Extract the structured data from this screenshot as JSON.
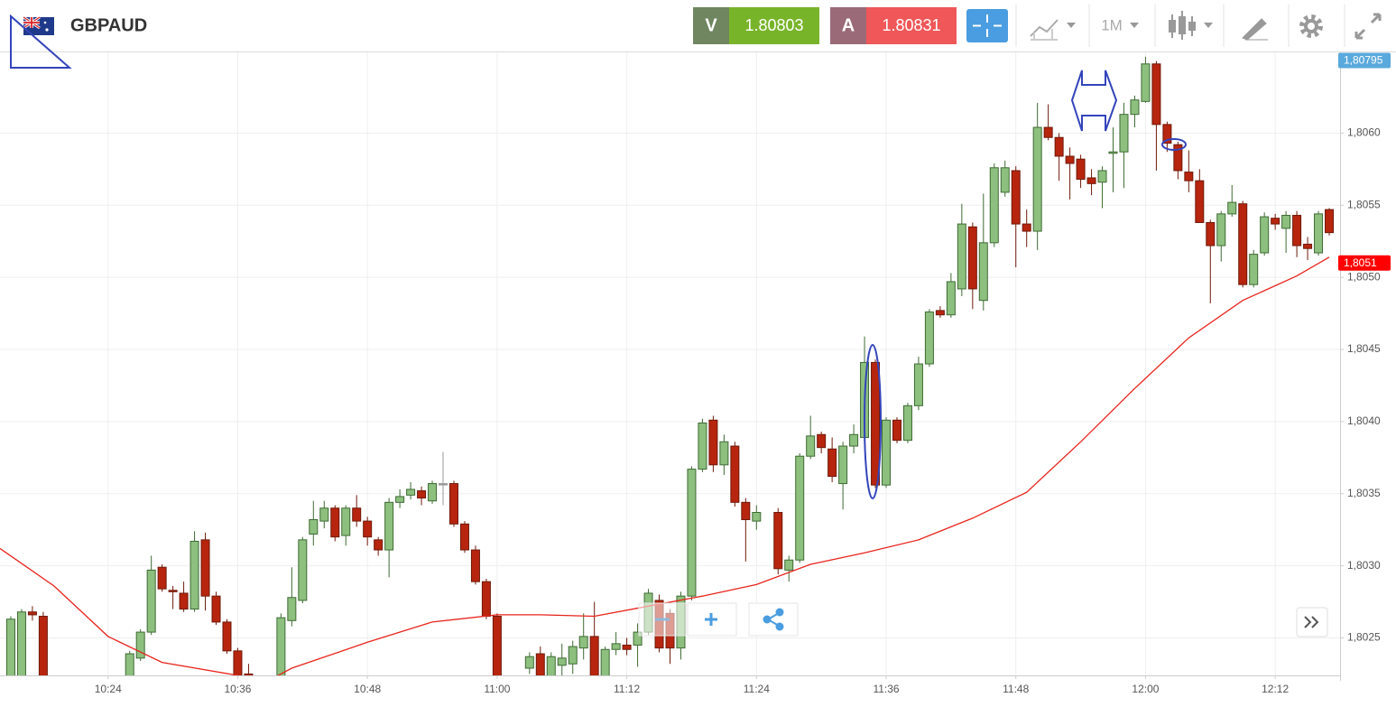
{
  "header": {
    "symbol": "GBPAUD",
    "sell": {
      "label": "V",
      "price": "1.80803"
    },
    "buy": {
      "label": "A",
      "price": "1.80831"
    },
    "timeframe": "1M"
  },
  "chart_data": {
    "type": "candlestick",
    "x": [
      "10:15",
      "10:16",
      "10:17",
      "10:18",
      "10:26",
      "10:27",
      "10:28",
      "10:29",
      "10:30",
      "10:31",
      "10:32",
      "10:33",
      "10:34",
      "10:35",
      "10:36",
      "10:37",
      "10:40",
      "10:41",
      "10:42",
      "10:43",
      "10:44",
      "10:45",
      "10:46",
      "10:47",
      "10:48",
      "10:49",
      "10:50",
      "10:51",
      "10:52",
      "10:53",
      "10:54",
      "10:55",
      "10:56",
      "10:57",
      "10:58",
      "10:59",
      "11:00",
      "11:03",
      "11:04",
      "11:05",
      "11:06",
      "11:07",
      "11:08",
      "11:09",
      "11:10",
      "11:11",
      "11:12",
      "11:13",
      "11:14",
      "11:15",
      "11:16",
      "11:17",
      "11:18",
      "11:19",
      "11:20",
      "11:21",
      "11:22",
      "11:23",
      "11:24",
      "11:26",
      "11:27",
      "11:28",
      "11:29",
      "11:30",
      "11:31",
      "11:32",
      "11:33",
      "11:34",
      "11:35",
      "11:36",
      "11:37",
      "11:38",
      "11:39",
      "11:40",
      "11:41",
      "11:42",
      "11:43",
      "11:44",
      "11:45",
      "11:46",
      "11:47",
      "11:48",
      "11:49",
      "11:50",
      "11:51",
      "11:52",
      "11:53",
      "11:54",
      "11:55",
      "11:56",
      "11:57",
      "11:58",
      "11:59",
      "12:00",
      "12:01",
      "12:02",
      "12:03",
      "12:04",
      "12:05",
      "12:06",
      "12:07",
      "12:08",
      "12:09",
      "12:10",
      "12:11",
      "12:12",
      "12:13",
      "12:14",
      "12:15",
      "12:16",
      "12:17"
    ],
    "open": [
      1.80215,
      1.80215,
      1.80268,
      1.80265,
      1.80215,
      1.80236,
      1.80254,
      1.80299,
      1.80283,
      1.80281,
      1.8027,
      1.80318,
      1.80279,
      1.80261,
      1.80241,
      1.80225,
      1.80215,
      1.80262,
      1.80276,
      1.80322,
      1.80331,
      1.8034,
      1.80321,
      1.8034,
      1.80331,
      1.80318,
      1.80311,
      1.80344,
      1.80349,
      1.80352,
      1.80345,
      1.80357,
      1.80357,
      1.80329,
      1.80311,
      1.80289,
      1.80265,
      1.80229,
      1.80239,
      1.80218,
      1.80231,
      1.80232,
      1.80243,
      1.80251,
      1.80215,
      1.80242,
      1.80245,
      1.80245,
      1.80254,
      1.80276,
      1.80267,
      1.80243,
      1.80279,
      1.80367,
      1.80401,
      1.8037,
      1.80383,
      1.80344,
      1.80331,
      1.80337,
      1.80297,
      1.80304,
      1.80376,
      1.80391,
      1.80381,
      1.80357,
      1.80383,
      1.80389,
      1.80441,
      1.80356,
      1.80401,
      1.80387,
      1.80411,
      1.8044,
      1.80477,
      1.80474,
      1.80492,
      1.80535,
      1.80484,
      1.80524,
      1.80559,
      1.80574,
      1.80537,
      1.80532,
      1.80604,
      1.80597,
      1.80584,
      1.80582,
      1.80569,
      1.80566,
      1.80586,
      1.80587,
      1.80613,
      1.80622,
      1.80648,
      1.80606,
      1.80592,
      1.80573,
      1.80567,
      1.80538,
      1.80522,
      1.80544,
      1.80551,
      1.80495,
      1.80517,
      1.80541,
      1.80534,
      1.80543,
      1.80523,
      1.80517,
      1.80547
    ],
    "high": [
      1.80265,
      1.8027,
      1.80272,
      1.80268,
      1.80241,
      1.80256,
      1.80307,
      1.80301,
      1.80286,
      1.80289,
      1.80324,
      1.80323,
      1.80282,
      1.80263,
      1.80243,
      1.80232,
      1.80267,
      1.80299,
      1.8032,
      1.80345,
      1.80345,
      1.80342,
      1.80342,
      1.80349,
      1.80334,
      1.8032,
      1.80347,
      1.80353,
      1.80358,
      1.80355,
      1.80359,
      1.80379,
      1.80359,
      1.80331,
      1.80314,
      1.80291,
      1.80267,
      1.8024,
      1.80244,
      1.8024,
      1.80246,
      1.80248,
      1.80267,
      1.80275,
      1.80244,
      1.80254,
      1.8025,
      1.8026,
      1.80284,
      1.8028,
      1.8027,
      1.80282,
      1.80369,
      1.80402,
      1.80404,
      1.80391,
      1.80386,
      1.80347,
      1.80342,
      1.8034,
      1.80307,
      1.80378,
      1.80404,
      1.80393,
      1.80389,
      1.80386,
      1.80398,
      1.80459,
      1.80443,
      1.80403,
      1.80403,
      1.80413,
      1.80445,
      1.80478,
      1.8048,
      1.80503,
      1.80551,
      1.80538,
      1.80558,
      1.80579,
      1.80581,
      1.80577,
      1.80547,
      1.80621,
      1.8062,
      1.806,
      1.8059,
      1.80585,
      1.80575,
      1.80577,
      1.80604,
      1.80621,
      1.80626,
      1.80653,
      1.8065,
      1.80608,
      1.80594,
      1.80588,
      1.80575,
      1.8054,
      1.80546,
      1.80564,
      1.80553,
      1.80519,
      1.80545,
      1.80544,
      1.80546,
      1.80546,
      1.80528,
      1.80546,
      1.80548
    ],
    "low": [
      1.8021,
      1.8021,
      1.80262,
      1.8021,
      1.8021,
      1.80234,
      1.80252,
      1.80282,
      1.8027,
      1.80268,
      1.80268,
      1.80269,
      1.80259,
      1.80239,
      1.8021,
      1.80212,
      1.8021,
      1.80258,
      1.80274,
      1.80314,
      1.80326,
      1.80317,
      1.80314,
      1.80327,
      1.80314,
      1.80307,
      1.80292,
      1.8034,
      1.80346,
      1.80342,
      1.80343,
      1.80342,
      1.80327,
      1.80309,
      1.80287,
      1.80263,
      1.8021,
      1.80225,
      1.8021,
      1.8021,
      1.80218,
      1.80225,
      1.80235,
      1.8021,
      1.8021,
      1.80238,
      1.80238,
      1.8023,
      1.80252,
      1.8024,
      1.80232,
      1.80235,
      1.80276,
      1.80365,
      1.80365,
      1.80363,
      1.80341,
      1.80303,
      1.80325,
      1.80294,
      1.80289,
      1.80302,
      1.80374,
      1.80378,
      1.80358,
      1.80339,
      1.80378,
      1.80386,
      1.80354,
      1.80354,
      1.80385,
      1.80385,
      1.80408,
      1.80438,
      1.80472,
      1.80472,
      1.80487,
      1.80478,
      1.80477,
      1.80521,
      1.80556,
      1.80507,
      1.80521,
      1.80519,
      1.80595,
      1.80567,
      1.80554,
      1.80562,
      1.80557,
      1.80548,
      1.80559,
      1.80562,
      1.80604,
      1.80621,
      1.80574,
      1.80587,
      1.80568,
      1.80559,
      1.80538,
      1.80482,
      1.80511,
      1.80542,
      1.80493,
      1.80493,
      1.80515,
      1.80533,
      1.80517,
      1.80514,
      1.80512,
      1.80515,
      1.80529
    ],
    "close": [
      1.80263,
      1.80268,
      1.80266,
      1.80215,
      1.80239,
      1.80254,
      1.80297,
      1.80284,
      1.80282,
      1.8027,
      1.80317,
      1.80279,
      1.80261,
      1.80241,
      1.80215,
      1.80218,
      1.80264,
      1.80278,
      1.80318,
      1.80332,
      1.8034,
      1.8032,
      1.8034,
      1.80331,
      1.8032,
      1.80311,
      1.80344,
      1.80348,
      1.80353,
      1.80347,
      1.80357,
      1.80357,
      1.80329,
      1.80311,
      1.80289,
      1.80265,
      1.80215,
      1.80237,
      1.80215,
      1.80237,
      1.80236,
      1.80244,
      1.80251,
      1.80215,
      1.80242,
      1.80246,
      1.80242,
      1.80254,
      1.80281,
      1.80243,
      1.80243,
      1.80279,
      1.80367,
      1.80399,
      1.8037,
      1.80386,
      1.80344,
      1.80332,
      1.80337,
      1.80298,
      1.80304,
      1.80376,
      1.8039,
      1.80382,
      1.80362,
      1.80383,
      1.80391,
      1.80441,
      1.80356,
      1.80401,
      1.80387,
      1.80411,
      1.8044,
      1.80476,
      1.80474,
      1.80497,
      1.80537,
      1.80492,
      1.80524,
      1.80576,
      1.80576,
      1.80537,
      1.80532,
      1.80604,
      1.80597,
      1.80584,
      1.80579,
      1.80568,
      1.80565,
      1.80574,
      1.80587,
      1.80613,
      1.80623,
      1.80648,
      1.80606,
      1.80593,
      1.80574,
      1.80567,
      1.80538,
      1.80522,
      1.80544,
      1.80552,
      1.80495,
      1.80516,
      1.80542,
      1.80537,
      1.80543,
      1.80522,
      1.8052,
      1.80544,
      1.80531
    ],
    "up_color": "#8dbf7f",
    "up_edge": "#3e6b33",
    "down_color": "#b7250e",
    "down_edge": "#6e1a0a",
    "flat_color": "#999999",
    "moving_average": {
      "color": "#e8241c",
      "x": [
        "10:14",
        "10:19",
        "10:24",
        "10:29",
        "10:36",
        "10:38",
        "10:41",
        "10:48",
        "10:54",
        "11:00",
        "11:04",
        "11:09",
        "11:14",
        "11:19",
        "11:24",
        "11:29",
        "11:34",
        "11:39",
        "11:44",
        "11:49",
        "11:54",
        "11:59",
        "12:04",
        "12:09",
        "12:14",
        "12:17"
      ],
      "values": [
        1.80312,
        1.80286,
        1.80251,
        1.80233,
        1.80224,
        1.80217,
        1.80229,
        1.80247,
        1.80261,
        1.80266,
        1.80266,
        1.80265,
        1.80272,
        1.80279,
        1.80287,
        1.80301,
        1.80309,
        1.80318,
        1.80333,
        1.80351,
        1.80386,
        1.80423,
        1.80458,
        1.80484,
        1.80501,
        1.80514
      ]
    },
    "xlim": [
      "10:14",
      "12:18"
    ],
    "xticks": [
      "10:24",
      "10:36",
      "10:48",
      "11:00",
      "11:12",
      "11:24",
      "11:36",
      "11:48",
      "12:00",
      "12:12"
    ],
    "ylim": [
      1.80224,
      1.80656
    ],
    "yticks": [
      {
        "value": 1.8025,
        "label": "1,8025"
      },
      {
        "value": 1.803,
        "label": "1,8030"
      },
      {
        "value": 1.8035,
        "label": "1,8035"
      },
      {
        "value": 1.804,
        "label": "1,8040"
      },
      {
        "value": 1.8045,
        "label": "1,8045"
      },
      {
        "value": 1.805,
        "label": "1,8050"
      },
      {
        "value": 1.8055,
        "label": "1,8055"
      },
      {
        "value": 1.806,
        "label": "1,8060"
      }
    ],
    "grid": true,
    "price_badges": [
      {
        "value": 1.80795,
        "label": "1,80795",
        "color": "#5aa9dc"
      },
      {
        "value": 1.8051,
        "label": "1,8051",
        "color": "#ff0000"
      }
    ]
  }
}
